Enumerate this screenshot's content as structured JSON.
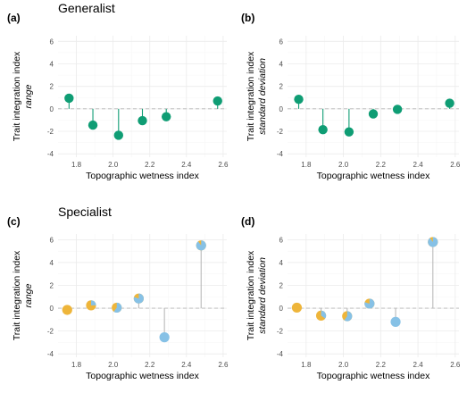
{
  "chart_data": [
    {
      "panel": "(a)",
      "heading": "Generalist",
      "type": "lollipop",
      "xlabel": "Topographic wetness index",
      "ylabel": "Trait integration index",
      "ylabel_sub": "range",
      "xlim": [
        1.7,
        2.62
      ],
      "ylim": [
        -4.3,
        6.5
      ],
      "xticks": [
        "1.8",
        "2.0",
        "2.2",
        "2.4",
        "2.6"
      ],
      "yticks": [
        "-4",
        "-2",
        "0",
        "2",
        "4",
        "6"
      ],
      "point_style": "solid",
      "color": "#0f9d74",
      "points": [
        {
          "x": 1.76,
          "y": 0.95
        },
        {
          "x": 1.89,
          "y": -1.45
        },
        {
          "x": 2.03,
          "y": -2.35
        },
        {
          "x": 2.16,
          "y": -1.05
        },
        {
          "x": 2.29,
          "y": -0.7
        },
        {
          "x": 2.57,
          "y": 0.7
        }
      ]
    },
    {
      "panel": "(b)",
      "heading": "",
      "type": "lollipop",
      "xlabel": "Topographic wetness index",
      "ylabel": "Trait integration index",
      "ylabel_sub": "standard deviation",
      "xlim": [
        1.7,
        2.62
      ],
      "ylim": [
        -4.3,
        6.5
      ],
      "xticks": [
        "1.8",
        "2.0",
        "2.2",
        "2.4",
        "2.6"
      ],
      "yticks": [
        "-4",
        "-2",
        "0",
        "2",
        "4",
        "6"
      ],
      "point_style": "solid",
      "color": "#0f9d74",
      "points": [
        {
          "x": 1.76,
          "y": 0.85
        },
        {
          "x": 1.89,
          "y": -1.85
        },
        {
          "x": 2.03,
          "y": -2.05
        },
        {
          "x": 2.16,
          "y": -0.45
        },
        {
          "x": 2.29,
          "y": -0.05
        },
        {
          "x": 2.57,
          "y": 0.5
        }
      ]
    },
    {
      "panel": "(c)",
      "heading": "Specialist",
      "type": "lollipop-pie",
      "xlabel": "Topographic wetness index",
      "ylabel": "Trait integration index",
      "ylabel_sub": "range",
      "xlim": [
        1.7,
        2.62
      ],
      "ylim": [
        -4.3,
        6.5
      ],
      "xticks": [
        "1.8",
        "2.0",
        "2.2",
        "2.4",
        "2.6"
      ],
      "yticks": [
        "-4",
        "-2",
        "0",
        "2",
        "4",
        "6"
      ],
      "point_style": "pie",
      "colors": {
        "orange": "#eeb53a",
        "blue": "#86c1e6",
        "stem": "#b9b9b9"
      },
      "points": [
        {
          "x": 1.75,
          "y": -0.15,
          "blue_share": 0.0
        },
        {
          "x": 1.88,
          "y": 0.25,
          "blue_share": 0.25
        },
        {
          "x": 2.02,
          "y": 0.05,
          "blue_share": 0.6
        },
        {
          "x": 2.14,
          "y": 0.85,
          "blue_share": 0.8
        },
        {
          "x": 2.28,
          "y": -2.55,
          "blue_share": 1.0
        },
        {
          "x": 2.48,
          "y": 5.5,
          "blue_share": 0.9
        }
      ]
    },
    {
      "panel": "(d)",
      "heading": "",
      "type": "lollipop-pie",
      "xlabel": "Topographic wetness index",
      "ylabel": "Trait integration index",
      "ylabel_sub": "standard deviation",
      "xlim": [
        1.7,
        2.62
      ],
      "ylim": [
        -4.3,
        6.5
      ],
      "xticks": [
        "1.8",
        "2.0",
        "2.2",
        "2.4",
        "2.6"
      ],
      "yticks": [
        "-4",
        "-2",
        "0",
        "2",
        "4",
        "6"
      ],
      "point_style": "pie",
      "colors": {
        "orange": "#eeb53a",
        "blue": "#86c1e6",
        "stem": "#b9b9b9"
      },
      "points": [
        {
          "x": 1.75,
          "y": 0.05,
          "blue_share": 0.0
        },
        {
          "x": 1.88,
          "y": -0.65,
          "blue_share": 0.35
        },
        {
          "x": 2.02,
          "y": -0.7,
          "blue_share": 0.6
        },
        {
          "x": 2.14,
          "y": 0.4,
          "blue_share": 0.8
        },
        {
          "x": 2.28,
          "y": -1.2,
          "blue_share": 1.0
        },
        {
          "x": 2.48,
          "y": 5.8,
          "blue_share": 0.9
        }
      ]
    }
  ]
}
